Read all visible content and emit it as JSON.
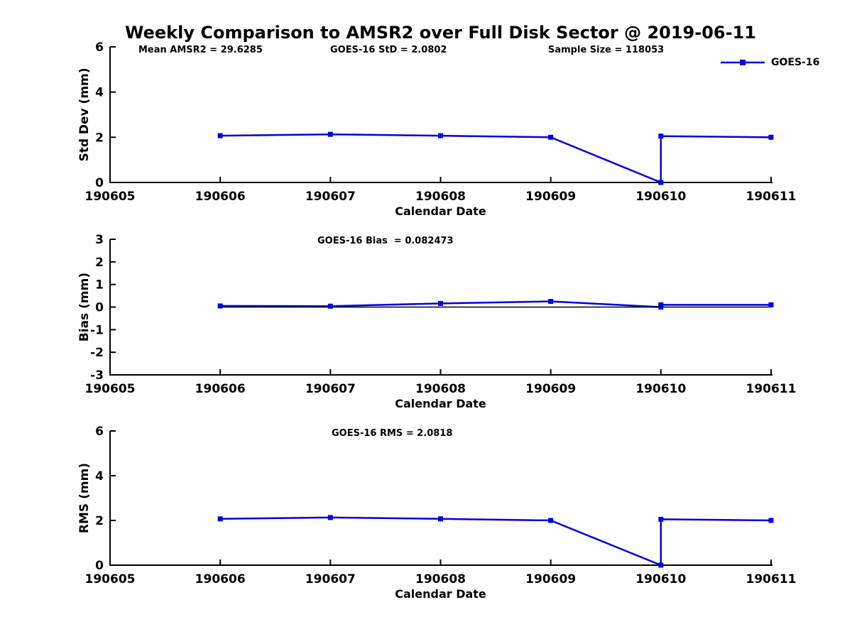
{
  "title": "Weekly Comparison to AMSR2 over Full Disk Sector @ 2019-06-11",
  "legend": {
    "label": "GOES-16"
  },
  "colors": {
    "series": "#0000E0",
    "axis": "#000000",
    "text": "#000000",
    "zero_line": "#000000",
    "background": "#FFFFFF"
  },
  "chart_data": [
    {
      "type": "line",
      "name": "std-dev",
      "ylabel": "Std Dev (mm)",
      "xlabel": "Calendar Date",
      "ylim": [
        0,
        6
      ],
      "ytick_values": [
        0,
        2,
        4,
        6
      ],
      "ytick_labels": [
        "0",
        "2",
        "4",
        "6"
      ],
      "xlim": [
        190605,
        190611
      ],
      "xtick_values": [
        190605,
        190606,
        190607,
        190608,
        190609,
        190610,
        190611
      ],
      "xtick_labels": [
        "190605",
        "190606",
        "190607",
        "190608",
        "190609",
        "190610",
        "190611"
      ],
      "annotations": [
        "Mean AMSR2 = 29.6285",
        "GOES-16 StD = 2.0802",
        "Sample Size = 118053"
      ],
      "zero_line": false,
      "grid": false,
      "legend_position": "upper-right",
      "series": [
        {
          "name": "GOES-16",
          "marker": "square",
          "x": [
            190606,
            190607,
            190608,
            190609,
            190610,
            190610,
            190611
          ],
          "y": [
            2.07,
            2.13,
            2.07,
            2.0,
            0.0,
            2.05,
            2.0
          ]
        }
      ]
    },
    {
      "type": "line",
      "name": "bias",
      "ylabel": "Bias (mm)",
      "xlabel": "Calendar Date",
      "ylim": [
        -3,
        3
      ],
      "ytick_values": [
        -3,
        -2,
        -1,
        0,
        1,
        2,
        3
      ],
      "ytick_labels": [
        "-3",
        "-2",
        "-1",
        "0",
        "1",
        "2",
        "3"
      ],
      "xlim": [
        190605,
        190611
      ],
      "xtick_values": [
        190605,
        190606,
        190607,
        190608,
        190609,
        190610,
        190611
      ],
      "xtick_labels": [
        "190605",
        "190606",
        "190607",
        "190608",
        "190609",
        "190610",
        "190611"
      ],
      "annotations": [
        "GOES-16 Bias  = 0.082473"
      ],
      "zero_line": true,
      "grid": false,
      "series": [
        {
          "name": "GOES-16",
          "marker": "square",
          "x": [
            190606,
            190607,
            190608,
            190609,
            190610,
            190610,
            190611
          ],
          "y": [
            0.05,
            0.04,
            0.16,
            0.25,
            0.0,
            0.1,
            0.1
          ]
        }
      ]
    },
    {
      "type": "line",
      "name": "rms",
      "ylabel": "RMS (mm)",
      "xlabel": "Calendar Date",
      "ylim": [
        0,
        6
      ],
      "ytick_values": [
        0,
        2,
        4,
        6
      ],
      "ytick_labels": [
        "0",
        "2",
        "4",
        "6"
      ],
      "xlim": [
        190605,
        190611
      ],
      "xtick_values": [
        190605,
        190606,
        190607,
        190608,
        190609,
        190610,
        190611
      ],
      "xtick_labels": [
        "190605",
        "190606",
        "190607",
        "190608",
        "190609",
        "190610",
        "190611"
      ],
      "annotations": [
        "GOES-16 RMS = 2.0818"
      ],
      "zero_line": false,
      "grid": false,
      "series": [
        {
          "name": "GOES-16",
          "marker": "square",
          "x": [
            190606,
            190607,
            190608,
            190609,
            190610,
            190610,
            190611
          ],
          "y": [
            2.07,
            2.13,
            2.07,
            2.0,
            0.0,
            2.05,
            2.0
          ]
        }
      ]
    }
  ]
}
